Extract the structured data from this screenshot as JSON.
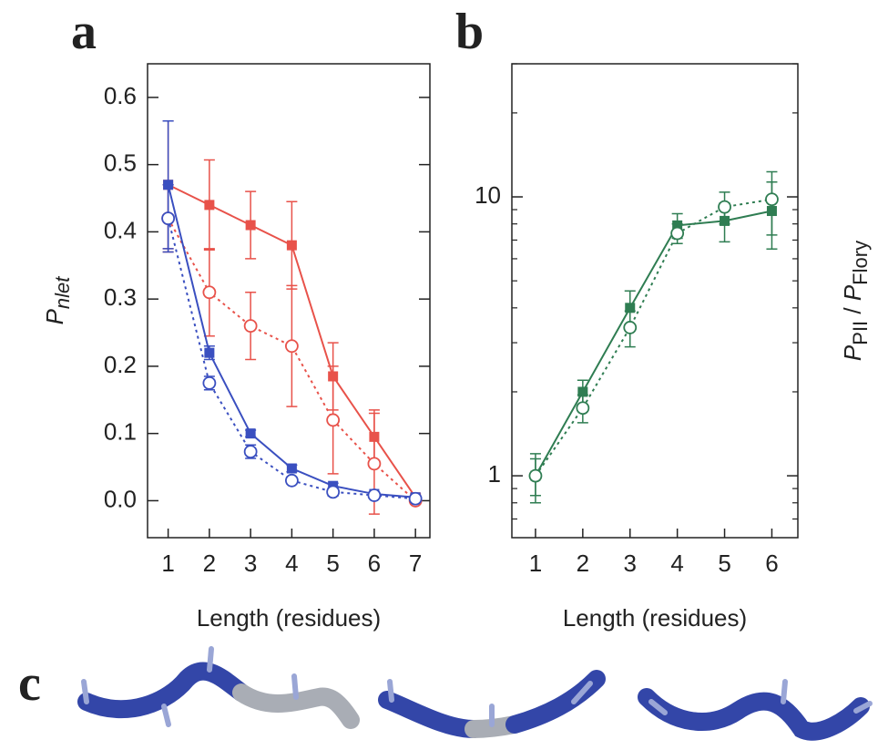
{
  "chart_data": [
    {
      "type": "line",
      "title": "a",
      "xlabel": "Length (residues)",
      "ylabel": [
        {
          "text": "P",
          "style": "italic"
        },
        {
          "text": "nlet",
          "style": "italic-sub"
        }
      ],
      "x": [
        1,
        2,
        3,
        4,
        5,
        6,
        7
      ],
      "xlim": [
        0.5,
        7.35
      ],
      "xticks": [
        1,
        2,
        3,
        4,
        5,
        6,
        7
      ],
      "ylim": [
        -0.055,
        0.65
      ],
      "yticks": [
        {
          "value": 0,
          "label": "0.0"
        },
        0.1,
        0.2,
        0.3,
        0.4,
        0.5,
        0.6
      ],
      "series": [
        {
          "color": "#e8524a",
          "marker": "square",
          "dash": "solid",
          "values": [
            0.47,
            0.44,
            0.41,
            0.38,
            0.185,
            0.095,
            0.005
          ],
          "errors": [
            0.095,
            0.067,
            0.05,
            0.065,
            0.05,
            0.04,
            0.005
          ]
        },
        {
          "color": "#e8524a",
          "marker": "circle",
          "dash": "dotted",
          "values": [
            0.42,
            0.31,
            0.26,
            0.23,
            0.12,
            0.055,
            0.0
          ],
          "errors": [
            0.05,
            0.065,
            0.05,
            0.09,
            0.08,
            0.075,
            0.005
          ]
        },
        {
          "color": "#3a4fc0",
          "marker": "square",
          "dash": "solid",
          "values": [
            0.47,
            0.22,
            0.1,
            0.048,
            0.022,
            0.01,
            0.005
          ],
          "errors": [
            0.095,
            0.01,
            0.005,
            0.005,
            0.004,
            0.003,
            0.003
          ]
        },
        {
          "color": "#3a4fc0",
          "marker": "circle",
          "dash": "dotted",
          "values": [
            0.42,
            0.175,
            0.073,
            0.03,
            0.013,
            0.008,
            0.003
          ],
          "errors": [
            0.05,
            0.01,
            0.01,
            0.005,
            0.006,
            0.004,
            0.003
          ]
        }
      ]
    },
    {
      "type": "line",
      "title": "b",
      "xlabel": "Length (residues)",
      "ylabel": [
        {
          "text": "P",
          "style": "italic"
        },
        {
          "text": "PII",
          "style": "sub"
        },
        {
          "text": " / "
        },
        {
          "text": "P",
          "style": "italic"
        },
        {
          "text": "Flory",
          "style": "sub"
        }
      ],
      "ylabel_side": "right",
      "log_y": true,
      "x": [
        1,
        2,
        3,
        4,
        5,
        6
      ],
      "xlim": [
        0.5,
        6.55
      ],
      "xticks": [
        1,
        2,
        3,
        4,
        5,
        6
      ],
      "ylim": [
        0.6,
        30
      ],
      "yticks": [
        1,
        10
      ],
      "yminorticks": [
        0.7,
        0.8,
        0.9,
        2,
        3,
        4,
        5,
        6,
        7,
        8,
        9,
        20,
        30
      ],
      "series": [
        {
          "color": "#2f7d52",
          "marker": "square",
          "dash": "solid",
          "values": [
            1.0,
            2.0,
            4.0,
            7.9,
            8.2,
            8.9
          ],
          "errors": [
            0.2,
            0.2,
            0.6,
            0.8,
            1.3,
            2.4
          ]
        },
        {
          "color": "#2f7d52",
          "marker": "circle",
          "dash": "dotted",
          "values": [
            1.0,
            1.75,
            3.4,
            7.4,
            9.2,
            9.8
          ],
          "errors": [
            0.15,
            0.2,
            0.5,
            0.6,
            1.2,
            2.5
          ]
        }
      ]
    }
  ],
  "panel_c": {
    "label": "c"
  }
}
